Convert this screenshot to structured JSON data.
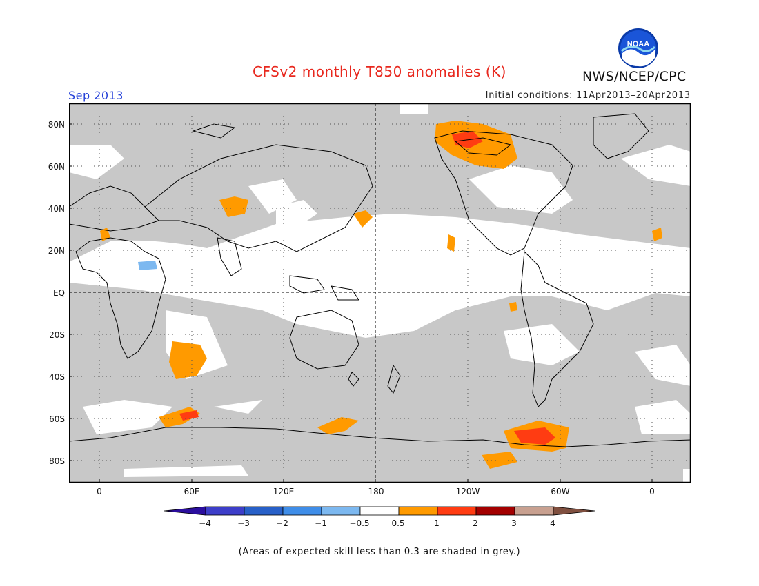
{
  "title": "CFSv2 monthly T850 anomalies (K)",
  "agency": "NWS/NCEP/CPC",
  "logo_text": "NOAA",
  "valid_month": "Sep 2013",
  "initial_conditions": "Initial conditions: 11Apr2013–20Apr2013",
  "y_ticks": [
    "80N",
    "60N",
    "40N",
    "20N",
    "EQ",
    "20S",
    "40S",
    "60S",
    "80S"
  ],
  "x_ticks": [
    "0",
    "60E",
    "120E",
    "180",
    "120W",
    "60W",
    "0"
  ],
  "colorbar": {
    "labels": [
      "−4",
      "−3",
      "−2",
      "−1",
      "−0.5",
      "0.5",
      "1",
      "2",
      "3",
      "4"
    ],
    "colors": [
      "#2b0e9e",
      "#3d3ec9",
      "#2860c8",
      "#3f8de8",
      "#7cb8f0",
      "#ffffff",
      "#ff9a00",
      "#ff3c12",
      "#a30000",
      "#c8a090",
      "#805040"
    ]
  },
  "colors": {
    "skill_grey": "#c8c8c8",
    "anomaly_0_5_to_1": "#ff9a00",
    "anomaly_1_to_2": "#ff3c12",
    "anomaly_2_to_3": "#a30000",
    "negative_0_5_to_1": "#7cb8f0",
    "title_red": "#e8281e",
    "month_blue": "#2440d8"
  },
  "footnote": "(Areas of expected skill less than 0.3 are shaded in grey.)"
}
